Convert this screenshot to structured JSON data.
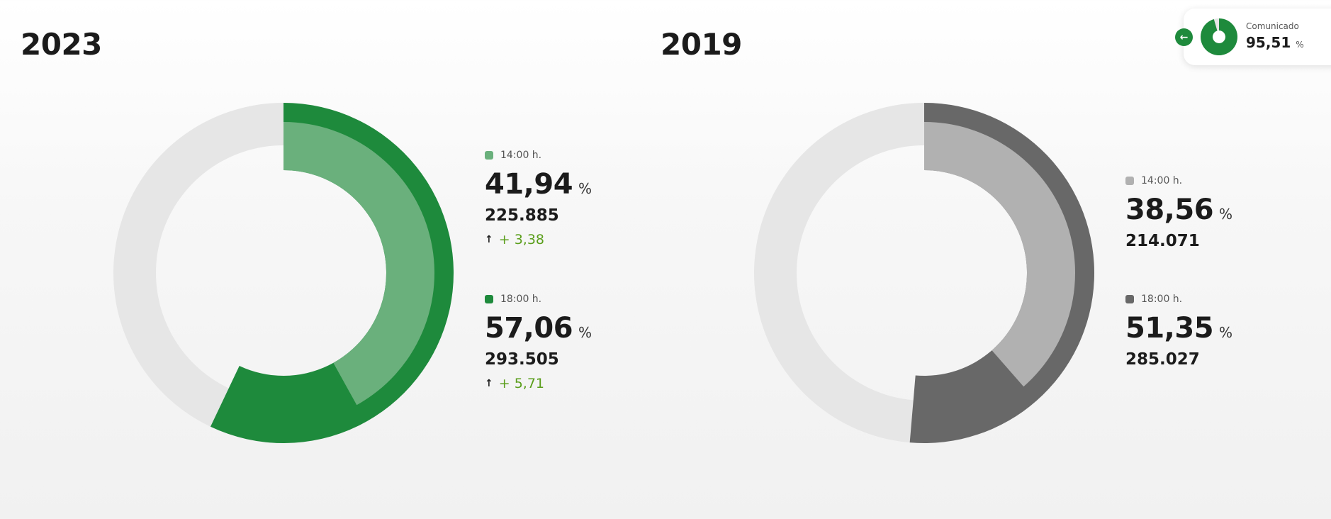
{
  "chart_data": [
    {
      "type": "pie",
      "variant": "nested-donut",
      "title": "2023",
      "max": 100,
      "series": [
        {
          "name": "14:00 h.",
          "value": 41.94,
          "value_label": "41,94",
          "votes": "225.885",
          "delta": "+ 3,38",
          "color": "#6ab07c",
          "ring": "inner"
        },
        {
          "name": "18:00 h.",
          "value": 57.06,
          "value_label": "57,06",
          "votes": "293.505",
          "delta": "+ 5,71",
          "color": "#1e8a3c",
          "ring": "outer"
        }
      ]
    },
    {
      "type": "pie",
      "variant": "nested-donut",
      "title": "2019",
      "max": 100,
      "series": [
        {
          "name": "14:00 h.",
          "value": 38.56,
          "value_label": "38,56",
          "votes": "214.071",
          "color": "#b1b1b1",
          "ring": "inner"
        },
        {
          "name": "18:00 h.",
          "value": 51.35,
          "value_label": "51,35",
          "votes": "285.027",
          "color": "#686868",
          "ring": "outer"
        }
      ]
    }
  ],
  "percent_sign": "%",
  "track_color": "#e6e6e6",
  "delta_arrow": "↑",
  "badge": {
    "label": "Comunicado",
    "value": 95.51,
    "value_label": "95,51",
    "color": "#1e8a3c",
    "back_icon": "arrow-left-icon",
    "back_glyph": "←"
  }
}
